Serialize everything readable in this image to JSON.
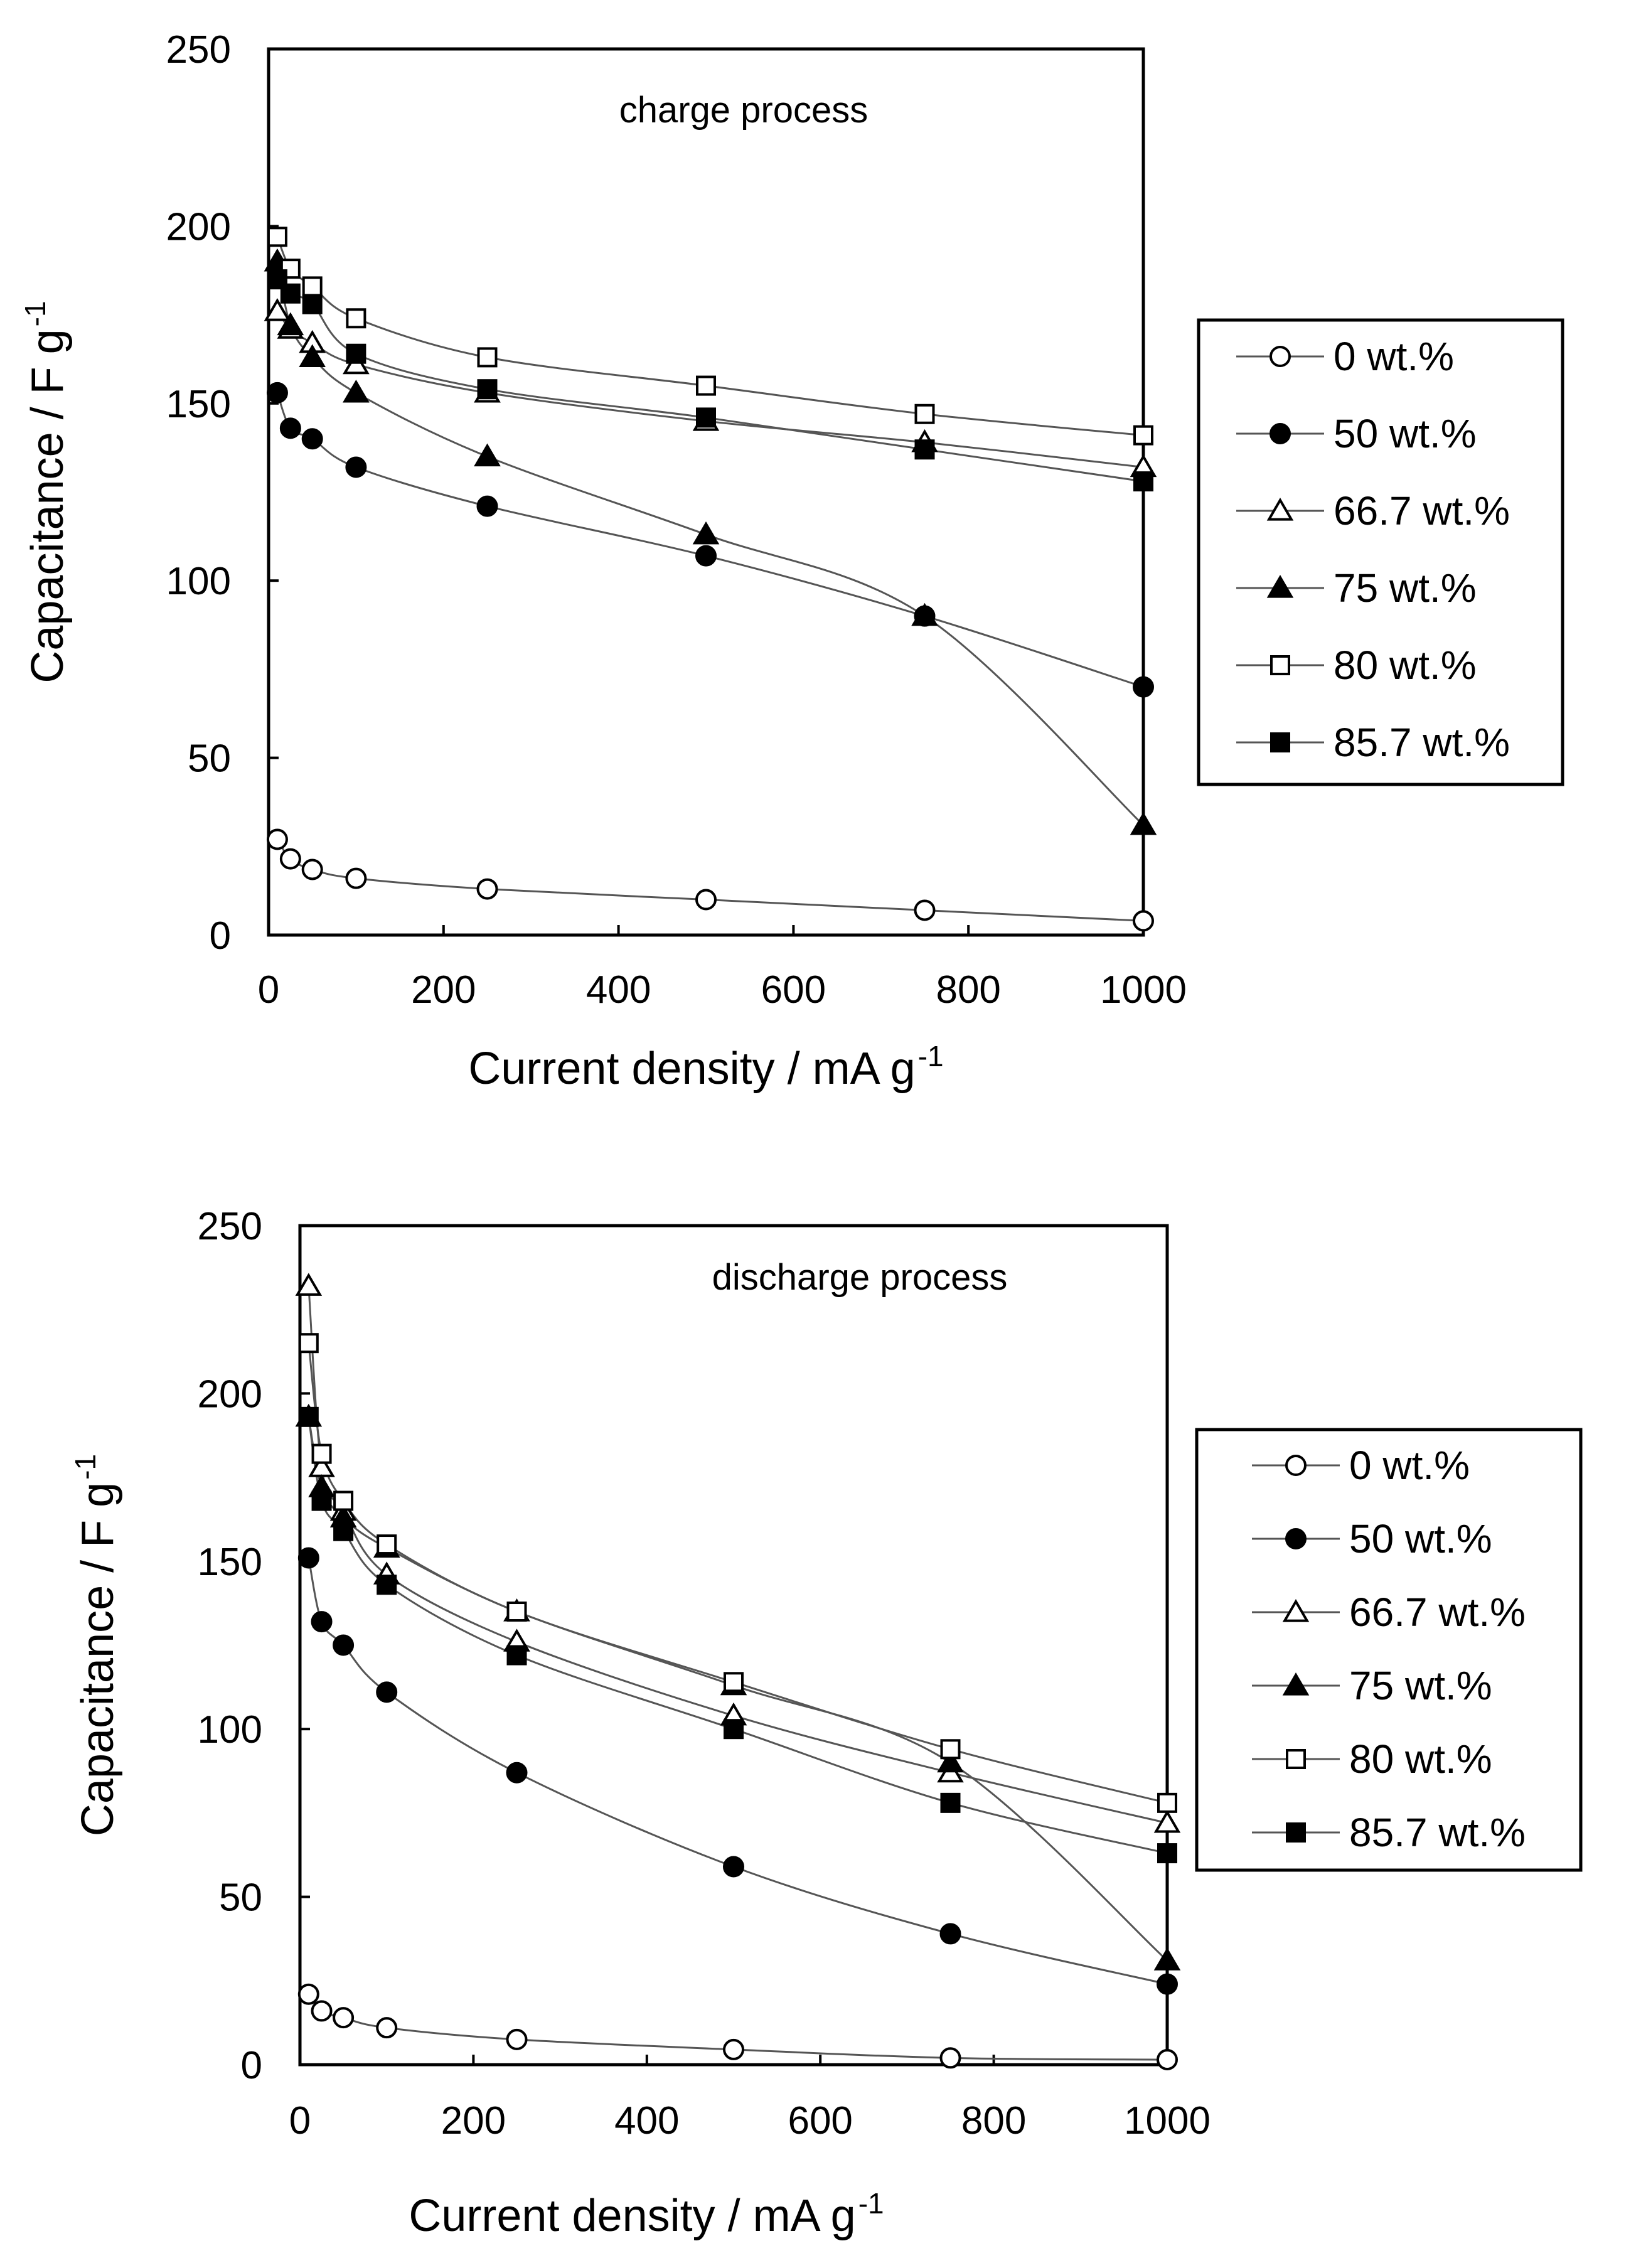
{
  "chart_data": [
    {
      "type": "line",
      "annotation": "charge process",
      "xlabel": "Current density / mA g",
      "xlabel_sup": "-1",
      "ylabel": "Capacitance / F g",
      "ylabel_sup": "-1",
      "xlim": [
        0,
        1000
      ],
      "ylim": [
        0,
        250
      ],
      "xticks": [
        0,
        200,
        400,
        600,
        800,
        1000
      ],
      "yticks": [
        0,
        50,
        100,
        150,
        200,
        250
      ],
      "grid": false,
      "legend_position": "right",
      "x": [
        10,
        25,
        50,
        100,
        250,
        500,
        750,
        1000
      ],
      "series": [
        {
          "name": "0 wt.%",
          "marker": "circle-open",
          "values": [
            27,
            21.5,
            18.5,
            16,
            13,
            10,
            7,
            4
          ]
        },
        {
          "name": "50 wt.%",
          "marker": "circle-filled",
          "values": [
            153,
            143,
            140,
            132,
            121,
            107,
            90,
            70
          ]
        },
        {
          "name": "66.7 wt.%",
          "marker": "triangle-open",
          "values": [
            176,
            171,
            167,
            161,
            153,
            145,
            139,
            132
          ]
        },
        {
          "name": "75 wt.%",
          "marker": "triangle-filled",
          "values": [
            190,
            172,
            163,
            153,
            135,
            113,
            90,
            31
          ]
        },
        {
          "name": "80 wt.%",
          "marker": "square-open",
          "values": [
            197,
            188,
            183,
            174,
            163,
            155,
            147,
            141
          ]
        },
        {
          "name": "85.7 wt.%",
          "marker": "square-filled",
          "values": [
            185,
            181,
            178,
            164,
            154,
            146,
            137,
            128
          ]
        }
      ]
    },
    {
      "type": "line",
      "annotation": "discharge process",
      "xlabel": "Current density / mA g",
      "xlabel_sup": "-1",
      "ylabel": "Capacitance / F g",
      "ylabel_sup": "-1",
      "xlim": [
        0,
        1000
      ],
      "ylim": [
        0,
        250
      ],
      "xticks": [
        0,
        200,
        400,
        600,
        800,
        1000
      ],
      "yticks": [
        0,
        50,
        100,
        150,
        200,
        250
      ],
      "grid": false,
      "legend_position": "right",
      "x": [
        10,
        25,
        50,
        100,
        250,
        500,
        750,
        1000
      ],
      "series": [
        {
          "name": "0 wt.%",
          "marker": "circle-open",
          "values": [
            21,
            16,
            14,
            11,
            7.5,
            4.5,
            2,
            1.5
          ]
        },
        {
          "name": "50 wt.%",
          "marker": "circle-filled",
          "values": [
            151,
            132,
            125,
            111,
            87,
            59,
            39,
            24
          ]
        },
        {
          "name": "66.7 wt.%",
          "marker": "triangle-open",
          "values": [
            232,
            178,
            165,
            146,
            126,
            104,
            87,
            72
          ]
        },
        {
          "name": "75 wt.%",
          "marker": "triangle-filled",
          "values": [
            193,
            172,
            163,
            154,
            135,
            113,
            90,
            31
          ]
        },
        {
          "name": "80 wt.%",
          "marker": "square-open",
          "values": [
            215,
            182,
            168,
            155,
            135,
            114,
            94,
            78
          ]
        },
        {
          "name": "85.7 wt.%",
          "marker": "square-filled",
          "values": [
            193,
            168,
            159,
            143,
            122,
            100,
            78,
            63
          ]
        }
      ]
    }
  ]
}
